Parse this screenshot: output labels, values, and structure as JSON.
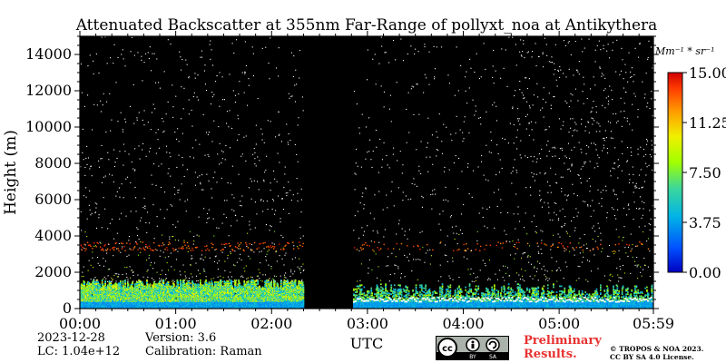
{
  "chart_data": {
    "type": "heatmap",
    "title": "Attenuated Backscatter at 355nm Far-Range of pollyxt_noa at Antikythera",
    "xlabel": "UTC",
    "ylabel": "Height (m)",
    "xlim": [
      "00:00",
      "05:59"
    ],
    "ylim": [
      0,
      15000
    ],
    "x_ticks": [
      "00:00",
      "01:00",
      "02:00",
      "03:00",
      "04:00",
      "05:00",
      "05:59"
    ],
    "y_ticks": [
      0,
      2000,
      4000,
      6000,
      8000,
      10000,
      12000,
      14000
    ],
    "colorbar": {
      "unit_label": "Mm⁻¹ * sr⁻¹",
      "ticks": [
        "0.00",
        "3.75",
        "7.50",
        "11.25",
        "15.00"
      ],
      "range": [
        0,
        15
      ],
      "colormap": "jet"
    },
    "no_data_interval": [
      "02:20",
      "02:51"
    ],
    "features": {
      "aerosol_layer_top_m": 3500,
      "dense_boundary_layer_top_m": 1500,
      "background_color": "#000000"
    }
  },
  "footer": {
    "date": "2023-12-28",
    "lc": "LC: 1.04e+12",
    "version": "Version: 3.6",
    "calibration": "Calibration: Raman",
    "preliminary": "Preliminary Results.",
    "copyright_line1": "© TROPOS & NOA 2023.",
    "copyright_line2": "CC BY SA 4.0 License.",
    "license_badge": {
      "cc": "cc",
      "by": "BY",
      "sa": "SA"
    }
  }
}
